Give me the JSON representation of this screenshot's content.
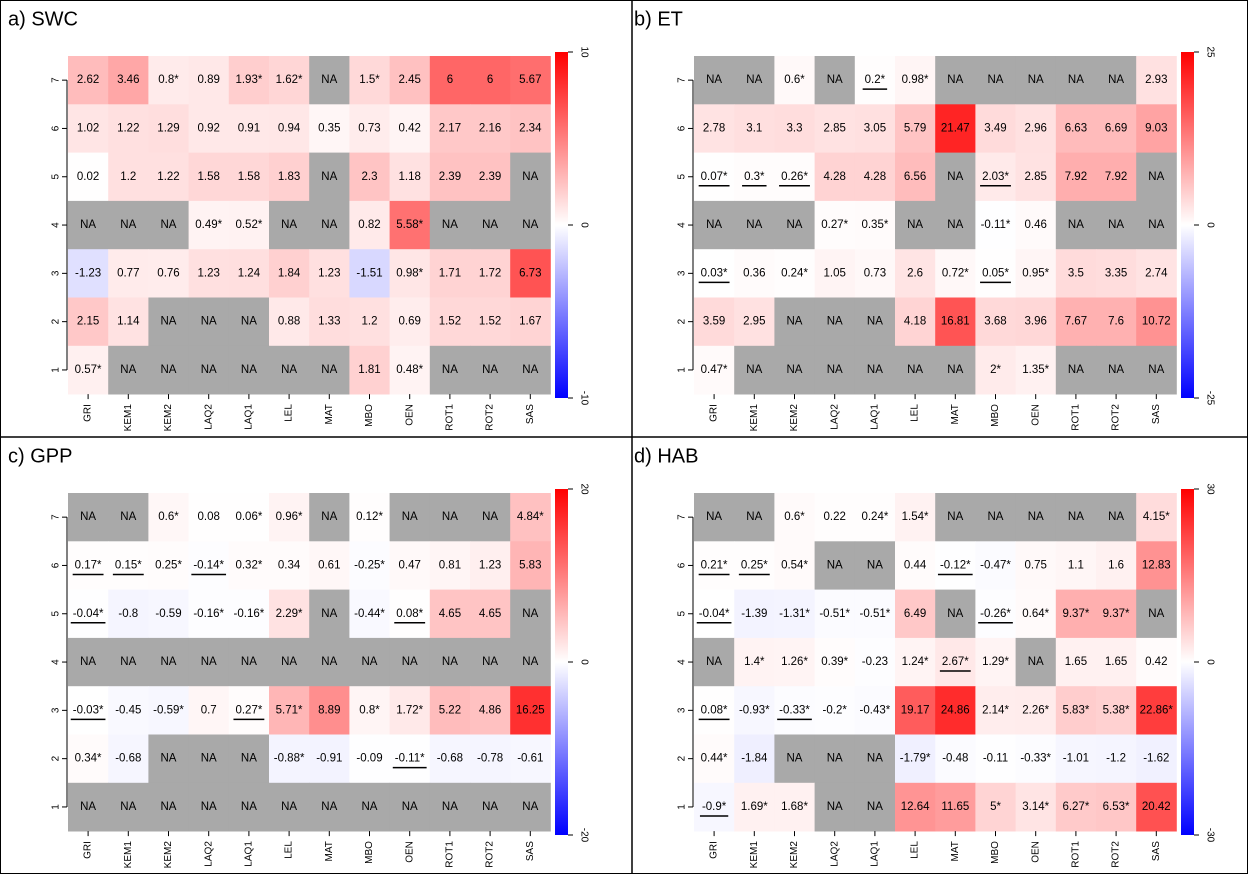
{
  "chart_data": [
    {
      "type": "heatmap",
      "title": "a) SWC",
      "columns": [
        "GRI",
        "KEM1",
        "KEM2",
        "LAQ2",
        "LAQ1",
        "LEL",
        "MAT",
        "MBO",
        "OEN",
        "ROT1",
        "ROT2",
        "SAS"
      ],
      "rows": [
        "7",
        "6",
        "5",
        "4",
        "3",
        "2",
        "1"
      ],
      "values": [
        [
          2.62,
          3.46,
          0.8,
          0.89,
          1.93,
          1.62,
          null,
          1.5,
          2.45,
          6,
          6,
          5.67
        ],
        [
          1.02,
          1.22,
          1.29,
          0.92,
          0.91,
          0.94,
          0.35,
          0.73,
          0.42,
          2.17,
          2.16,
          2.34
        ],
        [
          0.02,
          1.2,
          1.22,
          1.58,
          1.58,
          1.83,
          null,
          2.3,
          1.18,
          2.39,
          2.39,
          null
        ],
        [
          null,
          null,
          null,
          0.49,
          0.52,
          null,
          null,
          0.82,
          5.58,
          null,
          null,
          null
        ],
        [
          -1.23,
          0.77,
          0.76,
          1.23,
          1.24,
          1.84,
          1.23,
          -1.51,
          0.98,
          1.71,
          1.72,
          6.73
        ],
        [
          2.15,
          1.14,
          null,
          null,
          null,
          0.88,
          1.33,
          1.2,
          0.69,
          1.52,
          1.52,
          1.67
        ],
        [
          0.57,
          null,
          null,
          null,
          null,
          null,
          null,
          1.81,
          0.48,
          null,
          null,
          null
        ]
      ],
      "value_labels": [
        [
          "2.62",
          "3.46",
          "0.8*",
          "0.89",
          "1.93*",
          "1.62*",
          "NA",
          "1.5*",
          "2.45",
          "6",
          "6",
          "5.67"
        ],
        [
          "1.02",
          "1.22",
          "1.29",
          "0.92",
          "0.91",
          "0.94",
          "0.35",
          "0.73",
          "0.42",
          "2.17",
          "2.16",
          "2.34"
        ],
        [
          "0.02",
          "1.2",
          "1.22",
          "1.58",
          "1.58",
          "1.83",
          "NA",
          "2.3",
          "1.18",
          "2.39",
          "2.39",
          "NA"
        ],
        [
          "NA",
          "NA",
          "NA",
          "0.49*",
          "0.52*",
          "NA",
          "NA",
          "0.82",
          "5.58*",
          "NA",
          "NA",
          "NA"
        ],
        [
          "-1.23",
          "0.77",
          "0.76",
          "1.23",
          "1.24",
          "1.84",
          "1.23",
          "-1.51",
          "0.98*",
          "1.71",
          "1.72",
          "6.73"
        ],
        [
          "2.15",
          "1.14",
          "NA",
          "NA",
          "NA",
          "0.88",
          "1.33",
          "1.2",
          "0.69",
          "1.52",
          "1.52",
          "1.67"
        ],
        [
          "0.57*",
          "NA",
          "NA",
          "NA",
          "NA",
          "NA",
          "NA",
          "1.81",
          "0.48*",
          "NA",
          "NA",
          "NA"
        ]
      ],
      "underlined": [],
      "zlim": [
        -10,
        10
      ],
      "zticks": [
        -10,
        0,
        10
      ],
      "colors": [
        "#0000ff",
        "#ffffff",
        "#ff0000"
      ],
      "na_color": "#a9a9a9"
    },
    {
      "type": "heatmap",
      "title": "b) ET",
      "columns": [
        "GRI",
        "KEM1",
        "KEM2",
        "LAQ2",
        "LAQ1",
        "LEL",
        "MAT",
        "MBO",
        "OEN",
        "ROT1",
        "ROT2",
        "SAS"
      ],
      "rows": [
        "7",
        "6",
        "5",
        "4",
        "3",
        "2",
        "1"
      ],
      "values": [
        [
          null,
          null,
          0.6,
          null,
          0.2,
          0.98,
          null,
          null,
          null,
          null,
          null,
          2.93
        ],
        [
          2.78,
          3.1,
          3.3,
          2.85,
          3.05,
          5.79,
          21.47,
          3.49,
          2.96,
          6.63,
          6.69,
          9.03
        ],
        [
          0.07,
          0.3,
          0.26,
          4.28,
          4.28,
          6.56,
          null,
          2.03,
          2.85,
          7.92,
          7.92,
          null
        ],
        [
          null,
          null,
          null,
          0.27,
          0.35,
          null,
          null,
          -0.11,
          0.46,
          null,
          null,
          null
        ],
        [
          0.03,
          0.36,
          0.24,
          1.05,
          0.73,
          2.6,
          0.72,
          0.05,
          0.95,
          3.5,
          3.35,
          2.74
        ],
        [
          3.59,
          2.95,
          null,
          null,
          null,
          4.18,
          16.81,
          3.68,
          3.96,
          7.67,
          7.6,
          10.72
        ],
        [
          0.47,
          null,
          null,
          null,
          null,
          null,
          null,
          2,
          1.35,
          null,
          null,
          null
        ]
      ],
      "value_labels": [
        [
          "NA",
          "NA",
          "0.6*",
          "NA",
          "0.2*",
          "0.98*",
          "NA",
          "NA",
          "NA",
          "NA",
          "NA",
          "2.93"
        ],
        [
          "2.78",
          "3.1",
          "3.3",
          "2.85",
          "3.05",
          "5.79",
          "21.47",
          "3.49",
          "2.96",
          "6.63",
          "6.69",
          "9.03"
        ],
        [
          "0.07*",
          "0.3*",
          "0.26*",
          "4.28",
          "4.28",
          "6.56",
          "NA",
          "2.03*",
          "2.85",
          "7.92",
          "7.92",
          "NA"
        ],
        [
          "NA",
          "NA",
          "NA",
          "0.27*",
          "0.35*",
          "NA",
          "NA",
          "-0.11*",
          "0.46",
          "NA",
          "NA",
          "NA"
        ],
        [
          "0.03*",
          "0.36",
          "0.24*",
          "1.05",
          "0.73",
          "2.6",
          "0.72*",
          "0.05*",
          "0.95*",
          "3.5",
          "3.35",
          "2.74"
        ],
        [
          "3.59",
          "2.95",
          "NA",
          "NA",
          "NA",
          "4.18",
          "16.81",
          "3.68",
          "3.96",
          "7.67",
          "7.6",
          "10.72"
        ],
        [
          "0.47*",
          "NA",
          "NA",
          "NA",
          "NA",
          "NA",
          "NA",
          "2*",
          "1.35*",
          "NA",
          "NA",
          "NA"
        ]
      ],
      "underlined": [
        [
          0,
          4
        ],
        [
          2,
          0
        ],
        [
          2,
          1
        ],
        [
          2,
          2
        ],
        [
          2,
          7
        ],
        [
          4,
          0
        ],
        [
          4,
          7
        ]
      ],
      "zlim": [
        -25,
        25
      ],
      "zticks": [
        -25,
        0,
        25
      ],
      "colors": [
        "#0000ff",
        "#ffffff",
        "#ff0000"
      ],
      "na_color": "#a9a9a9"
    },
    {
      "type": "heatmap",
      "title": "c) GPP",
      "columns": [
        "GRI",
        "KEM1",
        "KEM2",
        "LAQ2",
        "LAQ1",
        "LEL",
        "MAT",
        "MBO",
        "OEN",
        "ROT1",
        "ROT2",
        "SAS"
      ],
      "rows": [
        "7",
        "6",
        "5",
        "4",
        "3",
        "2",
        "1"
      ],
      "values": [
        [
          null,
          null,
          0.6,
          0.08,
          0.06,
          0.96,
          null,
          0.12,
          null,
          null,
          null,
          4.84
        ],
        [
          0.17,
          0.15,
          0.25,
          -0.14,
          0.32,
          0.34,
          0.61,
          -0.25,
          0.47,
          0.81,
          1.23,
          5.83
        ],
        [
          -0.04,
          -0.8,
          -0.59,
          -0.16,
          -0.16,
          2.29,
          null,
          -0.44,
          0.08,
          4.65,
          4.65,
          null
        ],
        [
          null,
          null,
          null,
          null,
          null,
          null,
          null,
          null,
          null,
          null,
          null,
          null
        ],
        [
          -0.03,
          -0.45,
          -0.59,
          0.7,
          0.27,
          5.71,
          8.89,
          0.8,
          1.72,
          5.22,
          4.86,
          16.25
        ],
        [
          0.34,
          -0.68,
          null,
          null,
          null,
          -0.88,
          -0.91,
          -0.09,
          -0.11,
          -0.68,
          -0.78,
          -0.61
        ],
        [
          null,
          null,
          null,
          null,
          null,
          null,
          null,
          null,
          null,
          null,
          null,
          null
        ]
      ],
      "value_labels": [
        [
          "NA",
          "NA",
          "0.6*",
          "0.08",
          "0.06*",
          "0.96*",
          "NA",
          "0.12*",
          "NA",
          "NA",
          "NA",
          "4.84*"
        ],
        [
          "0.17*",
          "0.15*",
          "0.25*",
          "-0.14*",
          "0.32*",
          "0.34",
          "0.61",
          "-0.25*",
          "0.47",
          "0.81",
          "1.23",
          "5.83"
        ],
        [
          "-0.04*",
          "-0.8",
          "-0.59",
          "-0.16*",
          "-0.16*",
          "2.29*",
          "NA",
          "-0.44*",
          "0.08*",
          "4.65",
          "4.65",
          "NA"
        ],
        [
          "NA",
          "NA",
          "NA",
          "NA",
          "NA",
          "NA",
          "NA",
          "NA",
          "NA",
          "NA",
          "NA",
          "NA"
        ],
        [
          "-0.03*",
          "-0.45",
          "-0.59*",
          "0.7",
          "0.27*",
          "5.71*",
          "8.89",
          "0.8*",
          "1.72*",
          "5.22",
          "4.86",
          "16.25"
        ],
        [
          "0.34*",
          "-0.68",
          "NA",
          "NA",
          "NA",
          "-0.88*",
          "-0.91",
          "-0.09",
          "-0.11*",
          "-0.68",
          "-0.78",
          "-0.61"
        ],
        [
          "NA",
          "NA",
          "NA",
          "NA",
          "NA",
          "NA",
          "NA",
          "NA",
          "NA",
          "NA",
          "NA",
          "NA"
        ]
      ],
      "underlined": [
        [
          1,
          0
        ],
        [
          1,
          1
        ],
        [
          1,
          3
        ],
        [
          2,
          0
        ],
        [
          2,
          8
        ],
        [
          4,
          0
        ],
        [
          4,
          4
        ],
        [
          5,
          8
        ]
      ],
      "zlim": [
        -20,
        20
      ],
      "zticks": [
        -20,
        0,
        20
      ],
      "colors": [
        "#0000ff",
        "#ffffff",
        "#ff0000"
      ],
      "na_color": "#a9a9a9"
    },
    {
      "type": "heatmap",
      "title": "d) HAB",
      "columns": [
        "GRI",
        "KEM1",
        "KEM2",
        "LAQ2",
        "LAQ1",
        "LEL",
        "MAT",
        "MBO",
        "OEN",
        "ROT1",
        "ROT2",
        "SAS"
      ],
      "rows": [
        "7",
        "6",
        "5",
        "4",
        "3",
        "2",
        "1"
      ],
      "values": [
        [
          null,
          null,
          0.6,
          0.22,
          0.24,
          1.54,
          null,
          null,
          null,
          null,
          null,
          4.15
        ],
        [
          0.21,
          0.25,
          0.54,
          null,
          null,
          0.44,
          -0.12,
          -0.47,
          0.75,
          1.1,
          1.6,
          12.83
        ],
        [
          -0.04,
          -1.39,
          -1.31,
          -0.51,
          -0.51,
          6.49,
          null,
          -0.26,
          0.64,
          9.37,
          9.37,
          null
        ],
        [
          null,
          1.4,
          1.26,
          0.39,
          -0.23,
          1.24,
          2.67,
          1.29,
          null,
          1.65,
          1.65,
          0.42
        ],
        [
          0.08,
          -0.93,
          -0.33,
          -0.2,
          -0.43,
          19.17,
          24.86,
          2.14,
          2.26,
          5.83,
          5.38,
          22.86
        ],
        [
          0.44,
          -1.84,
          null,
          null,
          null,
          -1.79,
          -0.48,
          -0.11,
          -0.33,
          -1.01,
          -1.2,
          -1.62
        ],
        [
          -0.9,
          1.69,
          1.68,
          null,
          null,
          12.64,
          11.65,
          5,
          3.14,
          6.27,
          6.53,
          20.42
        ]
      ],
      "value_labels": [
        [
          "NA",
          "NA",
          "0.6*",
          "0.22",
          "0.24*",
          "1.54*",
          "NA",
          "NA",
          "NA",
          "NA",
          "NA",
          "4.15*"
        ],
        [
          "0.21*",
          "0.25*",
          "0.54*",
          "NA",
          "NA",
          "0.44",
          "-0.12*",
          "-0.47*",
          "0.75",
          "1.1",
          "1.6",
          "12.83"
        ],
        [
          "-0.04*",
          "-1.39",
          "-1.31*",
          "-0.51*",
          "-0.51*",
          "6.49",
          "NA",
          "-0.26*",
          "0.64*",
          "9.37*",
          "9.37*",
          "NA"
        ],
        [
          "NA",
          "1.4*",
          "1.26*",
          "0.39*",
          "-0.23",
          "1.24*",
          "2.67*",
          "1.29*",
          "NA",
          "1.65",
          "1.65",
          "0.42"
        ],
        [
          "0.08*",
          "-0.93*",
          "-0.33*",
          "-0.2*",
          "-0.43*",
          "19.17",
          "24.86",
          "2.14*",
          "2.26*",
          "5.83*",
          "5.38*",
          "22.86*"
        ],
        [
          "0.44*",
          "-1.84",
          "NA",
          "NA",
          "NA",
          "-1.79*",
          "-0.48",
          "-0.11",
          "-0.33*",
          "-1.01",
          "-1.2",
          "-1.62"
        ],
        [
          "-0.9*",
          "1.69*",
          "1.68*",
          "NA",
          "NA",
          "12.64",
          "11.65",
          "5*",
          "3.14*",
          "6.27*",
          "6.53*",
          "20.42"
        ]
      ],
      "underlined": [
        [
          1,
          0
        ],
        [
          1,
          1
        ],
        [
          1,
          6
        ],
        [
          2,
          0
        ],
        [
          2,
          7
        ],
        [
          3,
          6
        ],
        [
          4,
          0
        ],
        [
          4,
          2
        ],
        [
          6,
          0
        ]
      ],
      "zlim": [
        -30,
        30
      ],
      "zticks": [
        -30,
        0,
        30
      ],
      "colors": [
        "#0000ff",
        "#ffffff",
        "#ff0000"
      ],
      "na_color": "#a9a9a9"
    }
  ]
}
